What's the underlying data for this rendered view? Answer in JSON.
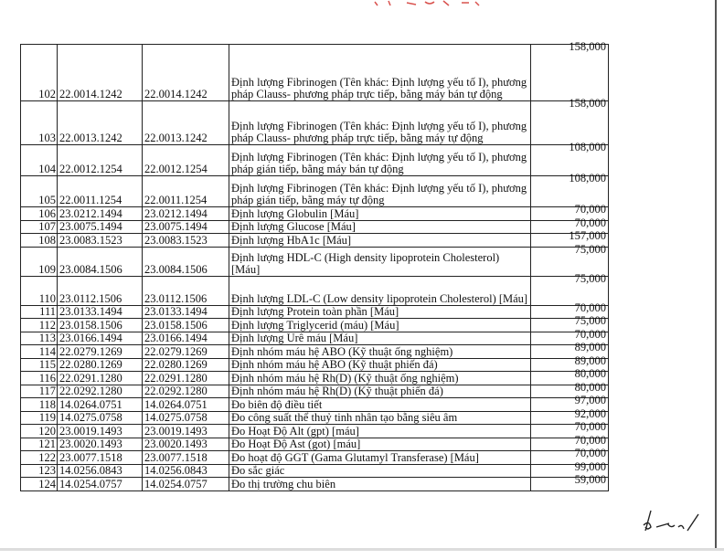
{
  "rows": [
    {
      "no": "102",
      "code1": "22.0014.1242",
      "code2": "22.0014.1242",
      "name": "Định lượng Fibrinogen (Tên khác: Định lượng yếu tố I), phương pháp Clauss- phương pháp trực tiếp, bằng máy bán tự động",
      "price": "158,000"
    },
    {
      "no": "103",
      "code1": "22.0013.1242",
      "code2": "22.0013.1242",
      "name": "Định lượng Fibrinogen (Tên khác: Định lượng yếu tố I), phương pháp Clauss- phương pháp trực tiếp, bằng máy tự động",
      "price": "158,000"
    },
    {
      "no": "104",
      "code1": "22.0012.1254",
      "code2": "22.0012.1254",
      "name": "Định lượng Fibrinogen (Tên khác: Định lượng yếu tố I), phương pháp gián tiếp, bằng máy bán tự động",
      "price": "108,000"
    },
    {
      "no": "105",
      "code1": "22.0011.1254",
      "code2": "22.0011.1254",
      "name": "Định lượng Fibrinogen (Tên khác: Định lượng yếu tố I), phương pháp gián tiếp, bằng máy tự động",
      "price": "108,000"
    },
    {
      "no": "106",
      "code1": "23.0212.1494",
      "code2": "23.0212.1494",
      "name": "Định lượng Globulin [Máu]",
      "price": "70,000"
    },
    {
      "no": "107",
      "code1": "23.0075.1494",
      "code2": "23.0075.1494",
      "name": "Định lượng Glucose [Máu]",
      "price": "70,000"
    },
    {
      "no": "108",
      "code1": "23.0083.1523",
      "code2": "23.0083.1523",
      "name": "Định lượng HbA1c [Máu]",
      "price": "157,000"
    },
    {
      "no": "109",
      "code1": "23.0084.1506",
      "code2": "23.0084.1506",
      "name": "Định lượng HDL-C (High density lipoprotein Cholesterol) [Máu]",
      "price": "75,000"
    },
    {
      "no": "110",
      "code1": "23.0112.1506",
      "code2": "23.0112.1506",
      "name": "Định lượng LDL-C (Low density lipoprotein Cholesterol) [Máu]",
      "price": "75,000"
    },
    {
      "no": "111",
      "code1": "23.0133.1494",
      "code2": "23.0133.1494",
      "name": "Định lượng Protein toàn phần [Máu]",
      "price": "70,000"
    },
    {
      "no": "112",
      "code1": "23.0158.1506",
      "code2": "23.0158.1506",
      "name": "Định lượng Triglycerid (máu) [Máu]",
      "price": "75,000"
    },
    {
      "no": "113",
      "code1": "23.0166.1494",
      "code2": "23.0166.1494",
      "name": "Định lượng Urê máu [Máu]",
      "price": "70,000"
    },
    {
      "no": "114",
      "code1": "22.0279.1269",
      "code2": "22.0279.1269",
      "name": "Định nhóm máu hệ ABO (Kỹ thuật ống nghiệm)",
      "price": "89,000"
    },
    {
      "no": "115",
      "code1": "22.0280.1269",
      "code2": "22.0280.1269",
      "name": "Định nhóm máu hệ ABO (Kỹ thuật phiến đá)",
      "price": "89,000"
    },
    {
      "no": "116",
      "code1": "22.0291.1280",
      "code2": "22.0291.1280",
      "name": "Định nhóm máu hệ Rh(D) (Kỹ thuật ống nghiệm)",
      "price": "80,000"
    },
    {
      "no": "117",
      "code1": "22.0292.1280",
      "code2": "22.0292.1280",
      "name": "Định nhóm máu hệ Rh(D) (Kỹ thuật phiến đá)",
      "price": "80,000"
    },
    {
      "no": "118",
      "code1": "14.0264.0751",
      "code2": "14.0264.0751",
      "name": "Đo biên độ điều tiết",
      "price": "97,000"
    },
    {
      "no": "119",
      "code1": "14.0275.0758",
      "code2": "14.0275.0758",
      "name": "Đo công suất thể thuỷ tinh nhân tạo bằng siêu âm",
      "price": "92,000"
    },
    {
      "no": "120",
      "code1": "23.0019.1493",
      "code2": "23.0019.1493",
      "name": "Đo Hoạt Độ Alt (gpt) [máu]",
      "price": "70,000"
    },
    {
      "no": "121",
      "code1": "23.0020.1493",
      "code2": "23.0020.1493",
      "name": "Đo Hoạt Độ Ast (got) [máu]",
      "price": "70,000"
    },
    {
      "no": "122",
      "code1": "23.0077.1518",
      "code2": "23.0077.1518",
      "name": "Đo hoạt độ GGT (Gama Glutamyl Transferase) [Máu]",
      "price": "70,000"
    },
    {
      "no": "123",
      "code1": "14.0256.0843",
      "code2": "14.0256.0843",
      "name": "Đo sắc giác",
      "price": "99,000"
    },
    {
      "no": "124",
      "code1": "14.0254.0757",
      "code2": "14.0254.0757",
      "name": "Đo thị trường chu biên",
      "price": "59,000"
    }
  ],
  "colors": {
    "ink": "#111111",
    "stamp": "#d9534f"
  },
  "signature": "handwritten initials"
}
